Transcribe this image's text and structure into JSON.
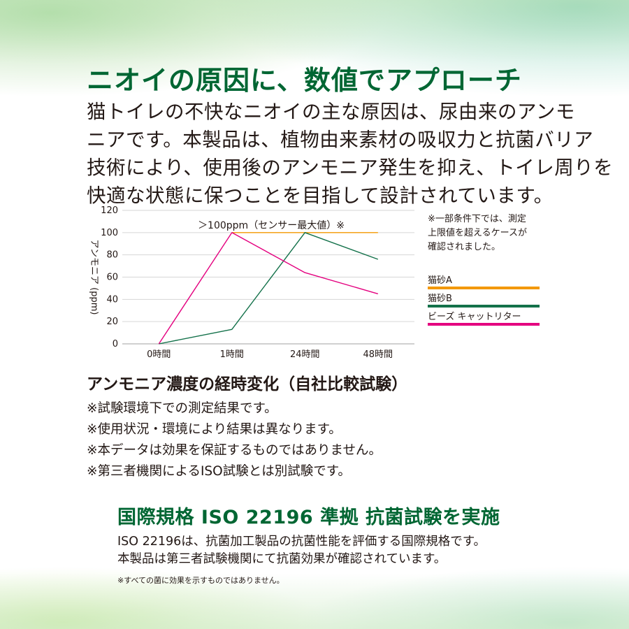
{
  "headline": "ニオイの原因に、数値でアプローチ",
  "lead": [
    "猫トイレの不快なニオイの主な原因は、尿由来のアンモ",
    "ニアです。本製品は、植物由来素材の吸収力と抗菌バリア",
    "技術により、使用後のアンモニア発生を抑え、トイレ周りを",
    "快適な状態に保つことを目指して設計されています。"
  ],
  "side_note": [
    "※一部条件下では、測定",
    "上限値を超えるケースが",
    "確認されました。"
  ],
  "chart_title": "アンモニア濃度の経時変化（自社比較試験）",
  "notes": [
    "※試験環境下での測定結果です。",
    "※使用状況・環境により結果は異なります。",
    "※本データは効果を保証するものではありません。",
    "※第三者機関によるISO試験とは別試験です。"
  ],
  "iso": {
    "title": "国際規格 ISO 22196 準拠 抗菌試験を実施",
    "body": [
      "ISO 22196は、抗菌加工製品の抗菌性能を評価する国際規格です。",
      "本製品は第三者試験機関にて抗菌効果が確認されています。"
    ],
    "footnote": "※すべての菌に効果を示すものではありません。"
  },
  "chart_data": {
    "type": "line",
    "categories": [
      "0時間",
      "1時間",
      "24時間",
      "48時間"
    ],
    "ylabel": "アンモニア (ppm)",
    "ylim": [
      0,
      120
    ],
    "yticks": [
      0,
      20,
      40,
      60,
      80,
      100,
      120
    ],
    "grid": true,
    "legend_position": "right",
    "annotation": "＞100ppm（センサー最大値）※",
    "series": [
      {
        "name": "猫砂A",
        "color": "#f39800",
        "values": [
          null,
          100,
          100,
          100
        ]
      },
      {
        "name": "猫砂B",
        "color": "#13714a",
        "values": [
          0,
          13,
          100,
          76
        ]
      },
      {
        "name": "ビーズ キャットリター",
        "color": "#e4007f",
        "values": [
          0,
          100,
          64,
          45
        ]
      }
    ]
  }
}
